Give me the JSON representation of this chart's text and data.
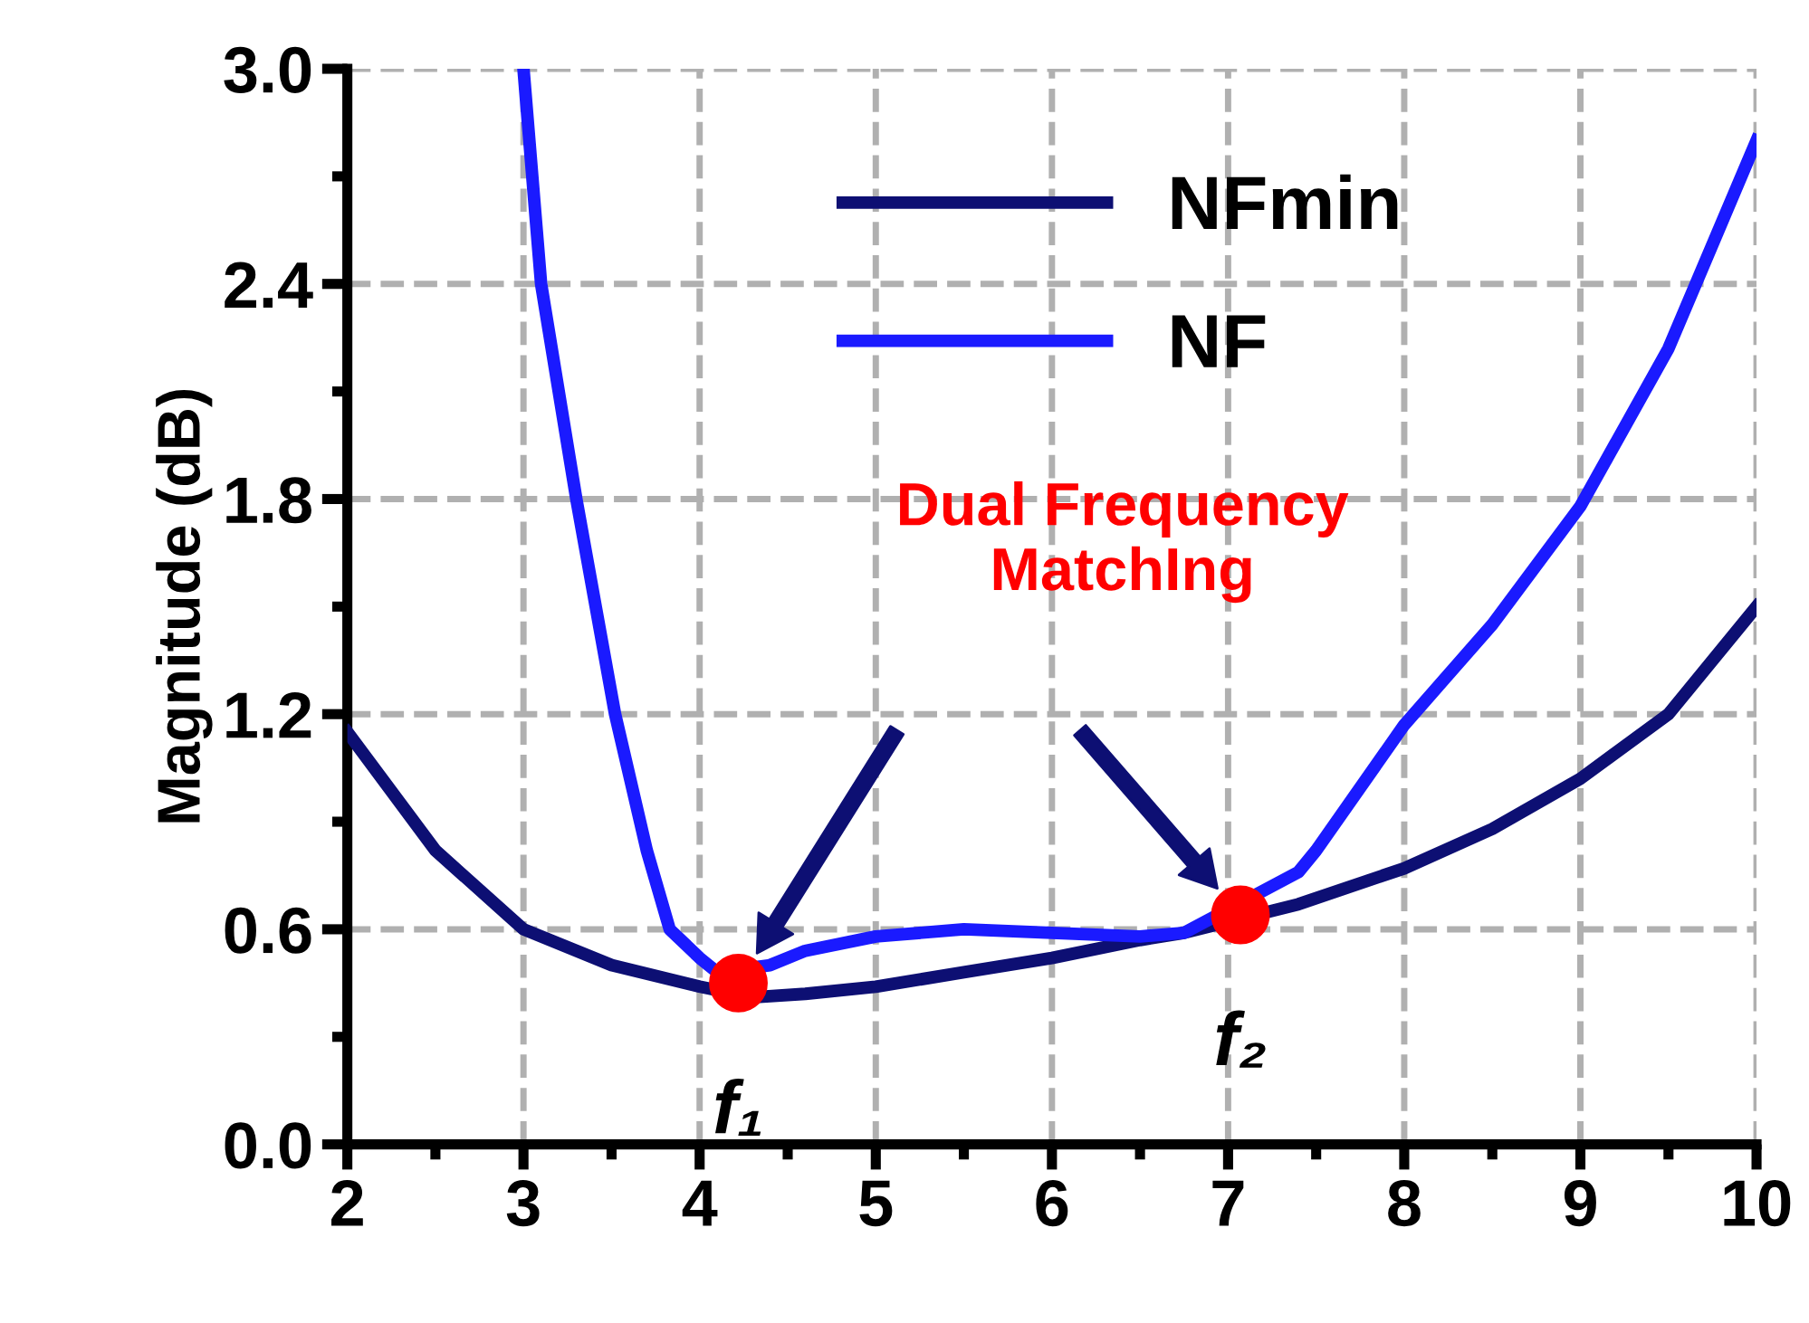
{
  "chart_data": {
    "type": "line",
    "ylabel": "Magnitude (dB)",
    "xlim": [
      2,
      10
    ],
    "ylim": [
      0,
      3
    ],
    "xticks": [
      2,
      3,
      4,
      5,
      6,
      7,
      8,
      9,
      10
    ],
    "yticks": [
      {
        "value": 0,
        "label": "0.0"
      },
      {
        "value": 0.6,
        "label": "0.6"
      },
      {
        "value": 1.2,
        "label": "1.2"
      },
      {
        "value": 1.8,
        "label": "1.8"
      },
      {
        "value": 2.4,
        "label": "2.4"
      },
      {
        "value": 3,
        "label": "3.0"
      }
    ],
    "grid": true,
    "legend": "top",
    "marker": "none",
    "line_style": "solid",
    "series": [
      {
        "name": "NFmin",
        "color": "#0d0f73",
        "x": [
          2,
          2.5,
          3,
          3.5,
          4,
          4.3,
          4.6,
          5,
          5.5,
          6,
          6.5,
          6.75,
          7.4,
          8,
          8.5,
          9,
          9.5,
          10
        ],
        "values": [
          1.15,
          0.82,
          0.6,
          0.5,
          0.44,
          0.41,
          0.42,
          0.44,
          0.48,
          0.52,
          0.57,
          0.59,
          0.67,
          0.77,
          0.88,
          1.02,
          1.2,
          1.5
        ]
      },
      {
        "name": "NF",
        "color": "#1a1aff",
        "x": [
          3,
          3.1,
          3.3,
          3.52,
          3.7,
          3.83,
          4.0,
          4.1,
          4.4,
          4.6,
          5,
          5.5,
          6,
          6.5,
          6.75,
          7.4,
          7.5,
          8,
          8.5,
          9,
          9.5,
          10
        ],
        "values": [
          3.0,
          2.4,
          1.8,
          1.2,
          0.82,
          0.6,
          0.52,
          0.48,
          0.5,
          0.54,
          0.58,
          0.6,
          0.59,
          0.58,
          0.59,
          0.76,
          0.82,
          1.17,
          1.45,
          1.78,
          2.22,
          2.8
        ]
      },
      {
        "type": "scatter",
        "color": "#ff0000",
        "marker": "circle",
        "x": [
          4.22,
          7.07
        ],
        "values": [
          0.45,
          0.64
        ]
      }
    ],
    "annotations": [
      "Dual Frequency\nMatchIng",
      {
        "text": "f₁",
        "x": 4.22,
        "y": 0.45
      },
      {
        "text": "f₂",
        "x": 7.07,
        "y": 0.64
      }
    ]
  }
}
